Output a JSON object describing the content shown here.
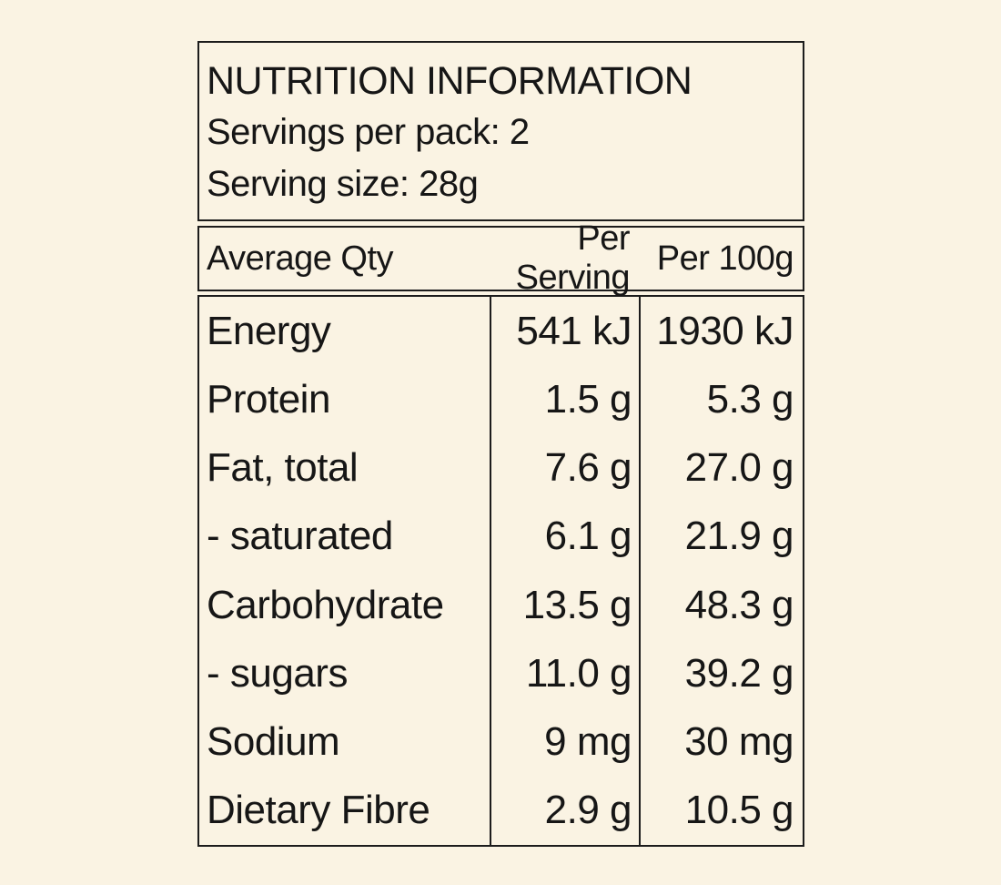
{
  "panel": {
    "title": "NUTRITION INFORMATION",
    "servings_per_pack": "Servings per pack: 2",
    "serving_size": "Serving size: 28g",
    "columns": [
      "Average Qty",
      "Per Serving",
      "Per 100g"
    ],
    "rows": [
      {
        "label": "Energy",
        "per_serving": "541 kJ",
        "per_100g": "1930 kJ"
      },
      {
        "label": "Protein",
        "per_serving": "1.5 g",
        "per_100g": "5.3 g"
      },
      {
        "label": "Fat, total",
        "per_serving": "7.6 g",
        "per_100g": "27.0 g"
      },
      {
        "label": "- saturated",
        "per_serving": "6.1 g",
        "per_100g": "21.9 g"
      },
      {
        "label": "Carbohydrate",
        "per_serving": "13.5 g",
        "per_100g": "48.3 g"
      },
      {
        "label": "- sugars",
        "per_serving": "11.0 g",
        "per_100g": "39.2 g"
      },
      {
        "label": "Sodium",
        "per_serving": "9 mg",
        "per_100g": "30 mg"
      },
      {
        "label": "Dietary Fibre",
        "per_serving": "2.9 g",
        "per_100g": "10.5 g"
      }
    ],
    "colors": {
      "background": "#FAF3E3",
      "border": "#1C1C1C",
      "text": "#161616"
    }
  }
}
